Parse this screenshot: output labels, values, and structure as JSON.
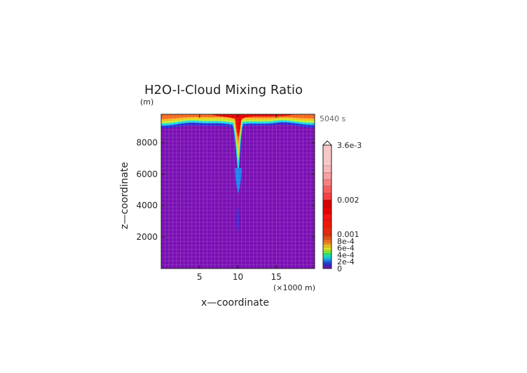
{
  "chart_data": {
    "type": "heatmap",
    "title": "H2O-I-Cloud Mixing Ratio",
    "time_label": "5040 s",
    "xlabel": "x—coordinate",
    "x_unit": "(×1000 m)",
    "ylabel": "z—coordinate",
    "y_unit": "(m)",
    "xlim": [
      0,
      20
    ],
    "ylim": [
      0,
      9800
    ],
    "x_ticks": [
      5,
      10,
      15
    ],
    "x_tick_labels": [
      "5",
      "10",
      "15"
    ],
    "y_ticks": [
      2000,
      4000,
      6000,
      8000
    ],
    "y_tick_labels": [
      "2000",
      "4000",
      "6000",
      "8000"
    ],
    "grid": true,
    "colorbar": {
      "position": "right",
      "max": 0.0036,
      "labels": [
        {
          "value": 0.0036,
          "text": "3.6e-3"
        },
        {
          "value": 0.002,
          "text": "0.002"
        },
        {
          "value": 0.001,
          "text": "0.001"
        },
        {
          "value": 0.0008,
          "text": "8e-4"
        },
        {
          "value": 0.0006,
          "text": "6e-4"
        },
        {
          "value": 0.0004,
          "text": "4e-4"
        },
        {
          "value": 0.0002,
          "text": "2e-4"
        },
        {
          "value": 0,
          "text": "0"
        }
      ],
      "levels": [
        0,
        5e-05,
        0.0001,
        0.00015,
        0.0002,
        0.00025,
        0.0003,
        0.00035,
        0.0004,
        0.00045,
        0.0005,
        0.00055,
        0.0006,
        0.00065,
        0.0007,
        0.00075,
        0.0008,
        0.00085,
        0.0009,
        0.00095,
        0.001,
        0.0012,
        0.0014,
        0.0016,
        0.0018,
        0.002,
        0.0022,
        0.0024,
        0.0026,
        0.0028,
        0.003,
        0.0036
      ],
      "colors": [
        "#7a0fb4",
        "#4b1fc8",
        "#2a2fd8",
        "#1a4fe8",
        "#1a7ff0",
        "#1ab0f0",
        "#1ad8e0",
        "#1ae8b0",
        "#3af070",
        "#7af040",
        "#bff030",
        "#e8f020",
        "#f8e020",
        "#f8c020",
        "#f8a020",
        "#f88020",
        "#f86a20",
        "#f05a1a",
        "#e84a14",
        "#e03a10",
        "#e8280c",
        "#f01808",
        "#f81010",
        "#e80000",
        "#d80000",
        "#f84040",
        "#f86060",
        "#f88080",
        "#f8a0a0",
        "#f8b8b8",
        "#f8c8c8"
      ]
    },
    "field_description_points": {
      "background_value": 0,
      "top_layer_z_range": [
        9000,
        9800
      ],
      "plume_center_x": 10,
      "plume_max_z_bottom": 5000
    }
  }
}
